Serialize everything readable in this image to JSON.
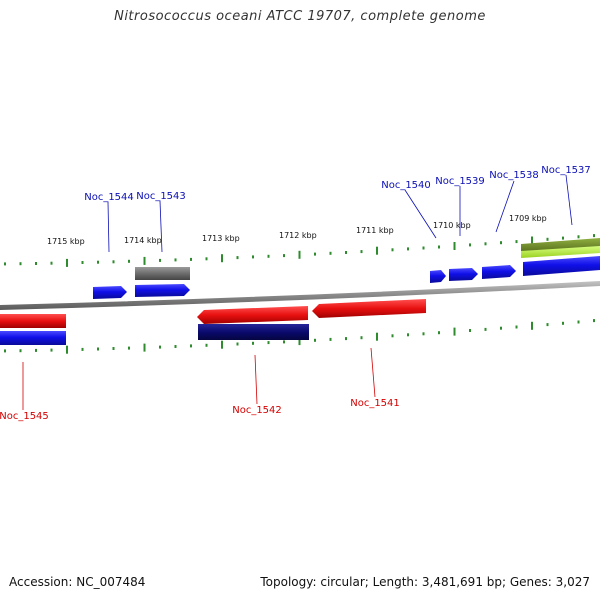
{
  "title": "Nitrosococcus oceani ATCC 19707, complete genome",
  "footer": {
    "accession": "Accession: NC_007484",
    "summary": "Topology: circular; Length: 3,481,691 bp; Genes: 3,027"
  },
  "colors": {
    "label_forward": "#0b0fb5",
    "label_reverse": "#d40000",
    "tick": "#2e8b2e",
    "backbone": "#8a8a8a",
    "feature_blue": "#1010e8",
    "feature_red": "#e81010",
    "feature_navy": "#0a0a6e",
    "feature_gray": "#6d6d6d",
    "feature_olive": "#6b8e23",
    "feature_lime": "#b7f03c"
  },
  "kbp_labels": [
    "1715 kbp",
    "1714 kbp",
    "1713 kbp",
    "1712 kbp",
    "1711 kbp",
    "1710 kbp",
    "1709 kbp"
  ],
  "gene_labels": {
    "forward": [
      "Noc_1544",
      "Noc_1543",
      "Noc_1540",
      "Noc_1539",
      "Noc_1538",
      "Noc_1537"
    ],
    "reverse": [
      "Noc_1545",
      "Noc_1542",
      "Noc_1541"
    ]
  }
}
